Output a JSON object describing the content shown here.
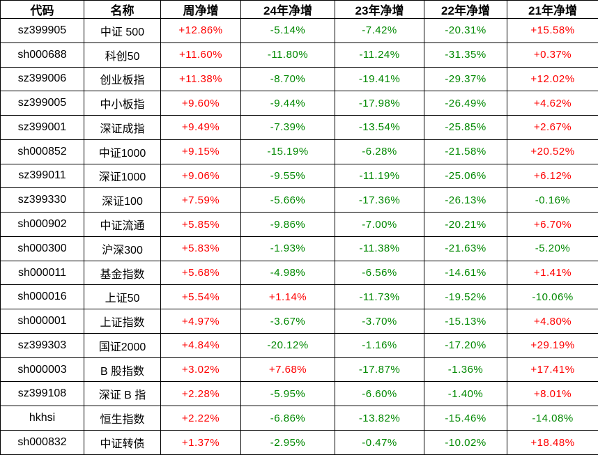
{
  "colors": {
    "positive": "#fe0000",
    "negative": "#008800",
    "border": "#000000",
    "text": "#000000",
    "background": "#ffffff"
  },
  "chart_data": {
    "type": "table",
    "columns": [
      "代码",
      "名称",
      "周净增",
      "24年净增",
      "23年净增",
      "22年净增",
      "21年净增"
    ],
    "rows": [
      {
        "code": "sz399905",
        "name": "中证 500",
        "values": [
          "+12.86%",
          "-5.14%",
          "-7.42%",
          "-20.31%",
          "+15.58%"
        ]
      },
      {
        "code": "sh000688",
        "name": "科创50",
        "values": [
          "+11.60%",
          "-11.80%",
          "-11.24%",
          "-31.35%",
          "+0.37%"
        ]
      },
      {
        "code": "sz399006",
        "name": "创业板指",
        "values": [
          "+11.38%",
          "-8.70%",
          "-19.41%",
          "-29.37%",
          "+12.02%"
        ]
      },
      {
        "code": "sz399005",
        "name": "中小板指",
        "values": [
          "+9.60%",
          "-9.44%",
          "-17.98%",
          "-26.49%",
          "+4.62%"
        ]
      },
      {
        "code": "sz399001",
        "name": "深证成指",
        "values": [
          "+9.49%",
          "-7.39%",
          "-13.54%",
          "-25.85%",
          "+2.67%"
        ]
      },
      {
        "code": "sh000852",
        "name": "中证1000",
        "values": [
          "+9.15%",
          "-15.19%",
          "-6.28%",
          "-21.58%",
          "+20.52%"
        ]
      },
      {
        "code": "sz399011",
        "name": "深证1000",
        "values": [
          "+9.06%",
          "-9.55%",
          "-11.19%",
          "-25.06%",
          "+6.12%"
        ]
      },
      {
        "code": "sz399330",
        "name": "深证100",
        "values": [
          "+7.59%",
          "-5.66%",
          "-17.36%",
          "-26.13%",
          "-0.16%"
        ]
      },
      {
        "code": "sh000902",
        "name": "中证流通",
        "values": [
          "+5.85%",
          "-9.86%",
          "-7.00%",
          "-20.21%",
          "+6.70%"
        ]
      },
      {
        "code": "sh000300",
        "name": "沪深300",
        "values": [
          "+5.83%",
          "-1.93%",
          "-11.38%",
          "-21.63%",
          "-5.20%"
        ]
      },
      {
        "code": "sh000011",
        "name": "基金指数",
        "values": [
          "+5.68%",
          "-4.98%",
          "-6.56%",
          "-14.61%",
          "+1.41%"
        ]
      },
      {
        "code": "sh000016",
        "name": "上证50",
        "values": [
          "+5.54%",
          "+1.14%",
          "-11.73%",
          "-19.52%",
          "-10.06%"
        ]
      },
      {
        "code": "sh000001",
        "name": "上证指数",
        "values": [
          "+4.97%",
          "-3.67%",
          "-3.70%",
          "-15.13%",
          "+4.80%"
        ]
      },
      {
        "code": "sz399303",
        "name": "国证2000",
        "values": [
          "+4.84%",
          "-20.12%",
          "-1.16%",
          "-17.20%",
          "+29.19%"
        ]
      },
      {
        "code": "sh000003",
        "name": "B 股指数",
        "values": [
          "+3.02%",
          "+7.68%",
          "-17.87%",
          "-1.36%",
          "+17.41%"
        ]
      },
      {
        "code": "sz399108",
        "name": "深证 B 指",
        "values": [
          "+2.28%",
          "-5.95%",
          "-6.60%",
          "-1.40%",
          "+8.01%"
        ]
      },
      {
        "code": "hkhsi",
        "name": "恒生指数",
        "values": [
          "+2.22%",
          "-6.86%",
          "-13.82%",
          "-15.46%",
          "-14.08%"
        ]
      },
      {
        "code": "sh000832",
        "name": "中证转债",
        "values": [
          "+1.37%",
          "-2.95%",
          "-0.47%",
          "-10.02%",
          "+18.48%"
        ]
      }
    ]
  }
}
